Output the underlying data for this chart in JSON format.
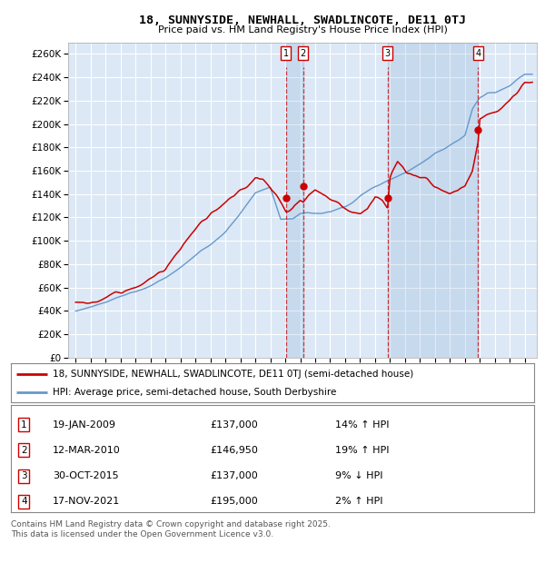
{
  "title": "18, SUNNYSIDE, NEWHALL, SWADLINCOTE, DE11 0TJ",
  "subtitle": "Price paid vs. HM Land Registry's House Price Index (HPI)",
  "legend_line1": "18, SUNNYSIDE, NEWHALL, SWADLINCOTE, DE11 0TJ (semi-detached house)",
  "legend_line2": "HPI: Average price, semi-detached house, South Derbyshire",
  "footer": "Contains HM Land Registry data © Crown copyright and database right 2025.\nThis data is licensed under the Open Government Licence v3.0.",
  "transactions": [
    {
      "num": 1,
      "date": "19-JAN-2009",
      "price": "£137,000",
      "hpi": "14% ↑ HPI",
      "year": 2009.05,
      "price_y": 137000
    },
    {
      "num": 2,
      "date": "12-MAR-2010",
      "price": "£146,950",
      "hpi": "19% ↑ HPI",
      "year": 2010.2,
      "price_y": 146950
    },
    {
      "num": 3,
      "date": "30-OCT-2015",
      "price": "£137,000",
      "hpi": "9% ↓ HPI",
      "year": 2015.83,
      "price_y": 137000
    },
    {
      "num": 4,
      "date": "17-NOV-2021",
      "price": "£195,000",
      "hpi": "2% ↑ HPI",
      "year": 2021.88,
      "price_y": 195000
    }
  ],
  "red_color": "#cc0000",
  "blue_color": "#6699cc",
  "bg_color": "#dce8f5",
  "grid_color": "#ffffff",
  "ylim": [
    0,
    270000
  ],
  "yticks": [
    0,
    20000,
    40000,
    60000,
    80000,
    100000,
    120000,
    140000,
    160000,
    180000,
    200000,
    220000,
    240000,
    260000
  ],
  "xlim": [
    1994.5,
    2025.8
  ],
  "xticks": [
    1995,
    1996,
    1997,
    1998,
    1999,
    2000,
    2001,
    2002,
    2003,
    2004,
    2005,
    2006,
    2007,
    2008,
    2009,
    2010,
    2011,
    2012,
    2013,
    2014,
    2015,
    2016,
    2017,
    2018,
    2019,
    2020,
    2021,
    2022,
    2023,
    2024,
    2025
  ]
}
